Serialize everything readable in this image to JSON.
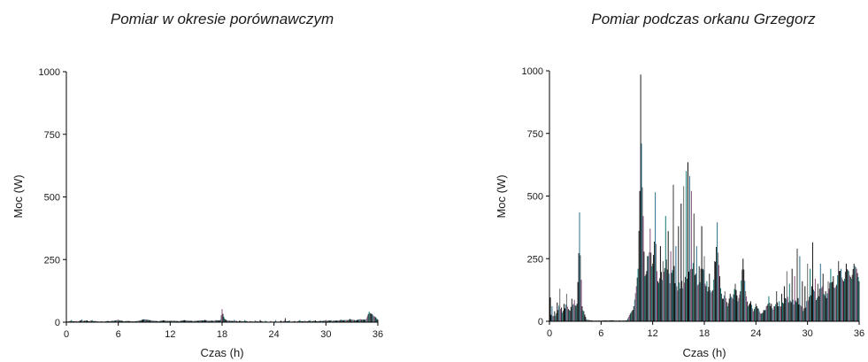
{
  "chart_data": [
    {
      "type": "line",
      "title": "Pomiar w okresie porównawczym",
      "xlabel": "Czas (h)",
      "ylabel": "Moc (W)",
      "xlim": [
        0,
        36
      ],
      "ylim": [
        0,
        1000
      ],
      "xticks": [
        "0",
        "6",
        "12",
        "18",
        "24",
        "30",
        "36"
      ],
      "yticks": [
        "0",
        "250",
        "500",
        "750",
        "1000"
      ],
      "grid": false,
      "series": [
        {
          "values_description_free": true,
          "x": [
            0,
            0.6,
            1.2,
            1.8,
            2.4,
            3.0,
            3.6,
            4.2,
            4.8,
            5.4,
            6.0,
            6.6,
            7.2,
            7.8,
            8.4,
            9.0,
            9.5,
            10.0,
            10.6,
            11.2,
            11.8,
            12.4,
            13.0,
            13.6,
            14.2,
            14.8,
            15.4,
            16.0,
            16.6,
            17.2,
            17.8,
            18.0,
            18.3,
            18.8,
            19.4,
            20.0,
            20.6,
            21.2,
            21.8,
            22.4,
            23.0,
            23.6,
            24.2,
            24.8,
            25.3,
            25.8,
            26.4,
            27.0,
            27.6,
            28.2,
            28.8,
            29.4,
            30.0,
            30.6,
            31.2,
            31.8,
            32.4,
            32.8,
            33.4,
            34.0,
            34.6,
            35.0,
            35.4,
            35.8,
            36.0
          ],
          "y": [
            6,
            9,
            5,
            11,
            7,
            8,
            4,
            3,
            5,
            6,
            10,
            4,
            5,
            3,
            6,
            12,
            9,
            6,
            4,
            7,
            5,
            6,
            4,
            8,
            6,
            5,
            7,
            9,
            6,
            8,
            10,
            52,
            14,
            7,
            9,
            6,
            8,
            5,
            7,
            9,
            6,
            5,
            8,
            6,
            16,
            7,
            5,
            9,
            6,
            8,
            7,
            6,
            9,
            8,
            7,
            10,
            9,
            13,
            8,
            12,
            10,
            42,
            30,
            18,
            10
          ]
        }
      ]
    },
    {
      "type": "line",
      "title": "Pomiar podczas orkanu Grzegorz",
      "xlabel": "Czas (h)",
      "ylabel": "Moc (W)",
      "xlim": [
        0,
        36
      ],
      "ylim": [
        0,
        1000
      ],
      "xticks": [
        "0",
        "6",
        "12",
        "18",
        "24",
        "30",
        "36"
      ],
      "yticks": [
        "0",
        "250",
        "500",
        "750",
        "1000"
      ],
      "grid": false,
      "series": [
        {
          "x": [
            0.1,
            0.3,
            0.6,
            0.9,
            1.2,
            1.4,
            1.7,
            2.0,
            2.3,
            2.6,
            2.9,
            3.2,
            3.5,
            3.8,
            4.0,
            4.3,
            4.6,
            5.0,
            6.0,
            7.0,
            8.0,
            9.0,
            9.8,
            10.1,
            10.3,
            10.5,
            10.6,
            10.7,
            10.9,
            11.1,
            11.4,
            11.7,
            12.0,
            12.3,
            12.6,
            12.9,
            13.2,
            13.5,
            13.8,
            14.1,
            14.4,
            14.7,
            15.0,
            15.3,
            15.6,
            15.9,
            16.1,
            16.3,
            16.5,
            16.8,
            17.1,
            17.4,
            17.7,
            18.0,
            18.3,
            18.6,
            18.9,
            19.2,
            19.5,
            19.8,
            20.1,
            20.4,
            20.7,
            21.0,
            21.3,
            21.6,
            21.9,
            22.2,
            22.5,
            22.8,
            23.1,
            23.4,
            23.7,
            24.0,
            24.3,
            24.6,
            24.9,
            25.2,
            25.5,
            25.8,
            26.1,
            26.4,
            26.7,
            27.0,
            27.3,
            27.6,
            27.9,
            28.2,
            28.5,
            28.8,
            29.1,
            29.4,
            29.7,
            30.0,
            30.3,
            30.6,
            30.9,
            31.2,
            31.5,
            31.8,
            32.1,
            32.4,
            32.7,
            33.0,
            33.3,
            33.6,
            33.9,
            34.2,
            34.5,
            34.8,
            35.1,
            35.4,
            35.7,
            36.0
          ],
          "y": [
            95,
            60,
            40,
            75,
            130,
            55,
            70,
            110,
            45,
            90,
            85,
            70,
            435,
            60,
            40,
            8,
            5,
            3,
            3,
            4,
            3,
            4,
            60,
            140,
            210,
            520,
            985,
            710,
            420,
            180,
            260,
            370,
            230,
            515,
            160,
            300,
            240,
            420,
            360,
            280,
            545,
            300,
            380,
            470,
            540,
            600,
            635,
            580,
            520,
            430,
            300,
            220,
            380,
            260,
            160,
            190,
            120,
            240,
            395,
            180,
            90,
            120,
            60,
            110,
            90,
            150,
            80,
            120,
            250,
            120,
            60,
            80,
            40,
            70,
            50,
            30,
            45,
            60,
            100,
            70,
            60,
            120,
            80,
            110,
            140,
            200,
            150,
            210,
            180,
            290,
            260,
            160,
            140,
            230,
            210,
            315,
            170,
            150,
            230,
            190,
            120,
            160,
            210,
            180,
            140,
            240,
            210,
            160,
            230,
            200,
            170,
            230,
            210,
            160
          ]
        }
      ]
    }
  ]
}
